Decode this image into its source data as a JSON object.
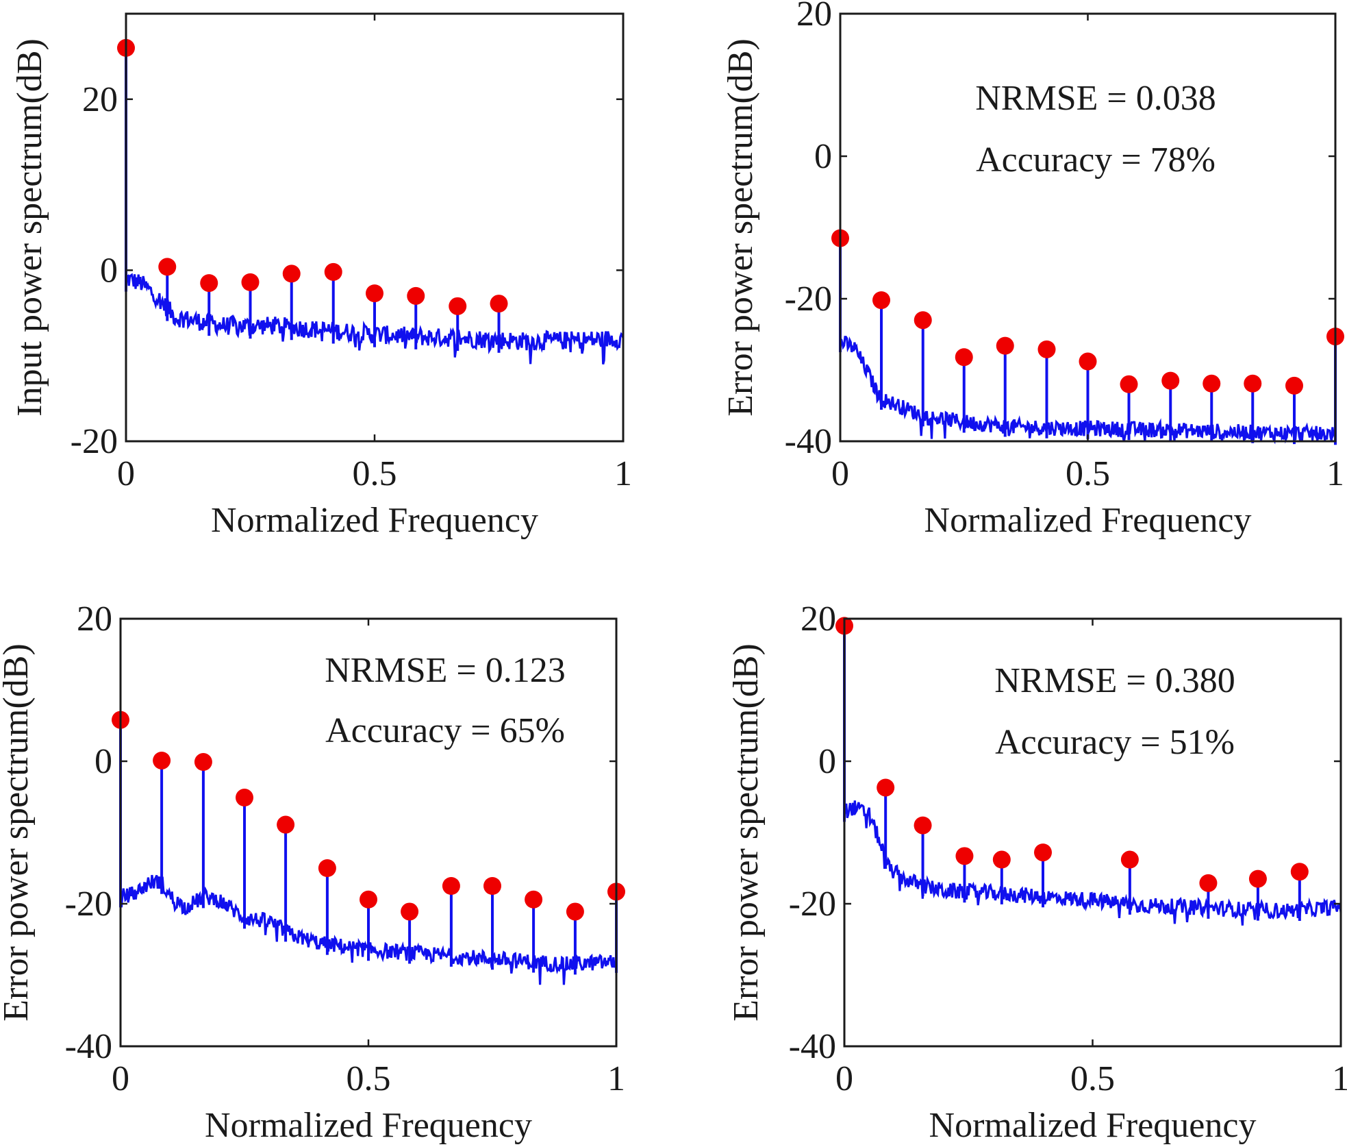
{
  "colors": {
    "spectrum_line": "#1010ee",
    "marker": "#ee0000",
    "axes": "#1a1a1a",
    "background": "#ffffff"
  },
  "chart_data": [
    {
      "type": "line",
      "panel": "top-left",
      "xlabel": "Normalized Frequency",
      "ylabel": "Input power spectrum(dB)",
      "xlim": [
        0,
        1
      ],
      "ylim": [
        -20,
        30
      ],
      "xticks": [
        0,
        0.5,
        1
      ],
      "xtick_labels": [
        "0",
        "0.5",
        "1"
      ],
      "yticks": [
        -20,
        0,
        20
      ],
      "ytick_labels": [
        "-20",
        "0",
        "20"
      ],
      "grid": false,
      "annotations": [],
      "series": [
        {
          "kind": "spectrum",
          "x": [
            0,
            0.03,
            0.06,
            0.1,
            0.15,
            0.2,
            0.3,
            0.4,
            0.5,
            0.6,
            0.7,
            0.8,
            0.9,
            0.99
          ],
          "y": [
            -1,
            -1.5,
            -3,
            -5.5,
            -6,
            -6.5,
            -6.5,
            -7,
            -7.5,
            -7.8,
            -8,
            -8.3,
            -8.2,
            -8
          ]
        },
        {
          "kind": "harmonic-markers",
          "x": [
            0,
            0.083,
            0.167,
            0.25,
            0.333,
            0.417,
            0.5,
            0.583,
            0.667,
            0.75
          ],
          "y": [
            26,
            0.4,
            -1.5,
            -1.4,
            -0.4,
            -0.2,
            -2.7,
            -3.0,
            -4.2,
            -3.9
          ]
        }
      ]
    },
    {
      "type": "line",
      "panel": "top-right",
      "xlabel": "Normalized Frequency",
      "ylabel": "Error power spectrum(dB)",
      "xlim": [
        0,
        1
      ],
      "ylim": [
        -40,
        20
      ],
      "xticks": [
        0,
        0.5,
        1
      ],
      "xtick_labels": [
        "0",
        "0.5",
        "1"
      ],
      "yticks": [
        -40,
        -20,
        0,
        20
      ],
      "ytick_labels": [
        "-40",
        "-20",
        "0",
        "20"
      ],
      "grid": false,
      "annotations": [
        "NRMSE = 0.038",
        "Accuracy = 78%"
      ],
      "series": [
        {
          "kind": "spectrum",
          "x": [
            0,
            0.03,
            0.06,
            0.08,
            0.1,
            0.17,
            0.25,
            0.35,
            0.5,
            0.7,
            0.85,
            0.99
          ],
          "y": [
            -26,
            -27,
            -31,
            -34,
            -34.5,
            -36.5,
            -37.3,
            -38,
            -38.2,
            -38.5,
            -38.8,
            -39
          ]
        },
        {
          "kind": "harmonic-markers",
          "x": [
            0,
            0.083,
            0.167,
            0.25,
            0.333,
            0.417,
            0.5,
            0.583,
            0.667,
            0.75,
            0.833,
            0.917,
            1.0
          ],
          "y": [
            -11.5,
            -20.2,
            -23.0,
            -28.2,
            -26.6,
            -27.1,
            -28.8,
            -32.0,
            -31.5,
            -31.9,
            -31.9,
            -32.2,
            -25.3
          ]
        }
      ]
    },
    {
      "type": "line",
      "panel": "bottom-left",
      "xlabel": "Normalized Frequency",
      "ylabel": "Error power spectrum(dB)",
      "xlim": [
        0,
        1
      ],
      "ylim": [
        -40,
        20
      ],
      "xticks": [
        0,
        0.5,
        1
      ],
      "xtick_labels": [
        "0",
        "0.5",
        "1"
      ],
      "yticks": [
        -40,
        -20,
        0,
        20
      ],
      "ytick_labels": [
        "-40",
        "-20",
        "0",
        "20"
      ],
      "grid": false,
      "annotations": [
        "NRMSE = 0.123",
        "Accuracy = 65%"
      ],
      "series": [
        {
          "kind": "spectrum",
          "x": [
            0,
            0.03,
            0.06,
            0.08,
            0.1,
            0.13,
            0.17,
            0.2,
            0.25,
            0.3,
            0.35,
            0.4,
            0.5,
            0.6,
            0.7,
            0.8,
            0.9,
            0.99
          ],
          "y": [
            -19,
            -18.5,
            -17,
            -16.8,
            -19,
            -20.5,
            -19,
            -19.5,
            -22,
            -22.5,
            -24.5,
            -25.5,
            -26.5,
            -27,
            -27.5,
            -28,
            -28.5,
            -28.2
          ]
        },
        {
          "kind": "harmonic-markers",
          "x": [
            0,
            0.083,
            0.167,
            0.25,
            0.333,
            0.417,
            0.5,
            0.583,
            0.667,
            0.75,
            0.833,
            0.917,
            1.0
          ],
          "y": [
            5.8,
            0.1,
            -0.1,
            -5.1,
            -8.9,
            -15.0,
            -19.4,
            -21.1,
            -17.5,
            -17.5,
            -19.4,
            -21.1,
            -18.3
          ]
        }
      ]
    },
    {
      "type": "line",
      "panel": "bottom-right",
      "xlabel": "Normalized Frequency",
      "ylabel": "Error power spectrum(dB)",
      "xlim": [
        0,
        1
      ],
      "ylim": [
        -40,
        20
      ],
      "xticks": [
        0,
        0.5,
        1
      ],
      "xtick_labels": [
        "0",
        "0.5",
        "1"
      ],
      "yticks": [
        -40,
        -20,
        0,
        20
      ],
      "ytick_labels": [
        "-40",
        "-20",
        "0",
        "20"
      ],
      "grid": false,
      "annotations": [
        "NRMSE = 0.380",
        "Accuracy = 51%"
      ],
      "series": [
        {
          "kind": "spectrum",
          "x": [
            0,
            0.02,
            0.05,
            0.07,
            0.09,
            0.12,
            0.16,
            0.2,
            0.3,
            0.4,
            0.5,
            0.6,
            0.7,
            0.8,
            0.9,
            0.99
          ],
          "y": [
            -7,
            -6.5,
            -7.5,
            -11,
            -15,
            -16.5,
            -17.5,
            -18.2,
            -18.5,
            -19,
            -19.5,
            -20.2,
            -20.5,
            -20.8,
            -21,
            -20.5
          ]
        },
        {
          "kind": "harmonic-markers",
          "x": [
            0,
            0.083,
            0.158,
            0.242,
            0.317,
            0.4,
            0.575,
            0.733,
            0.833,
            0.917
          ],
          "y": [
            19.0,
            -3.7,
            -9.0,
            -13.3,
            -13.8,
            -12.8,
            -13.8,
            -17.1,
            -16.5,
            -15.5
          ]
        }
      ]
    }
  ]
}
